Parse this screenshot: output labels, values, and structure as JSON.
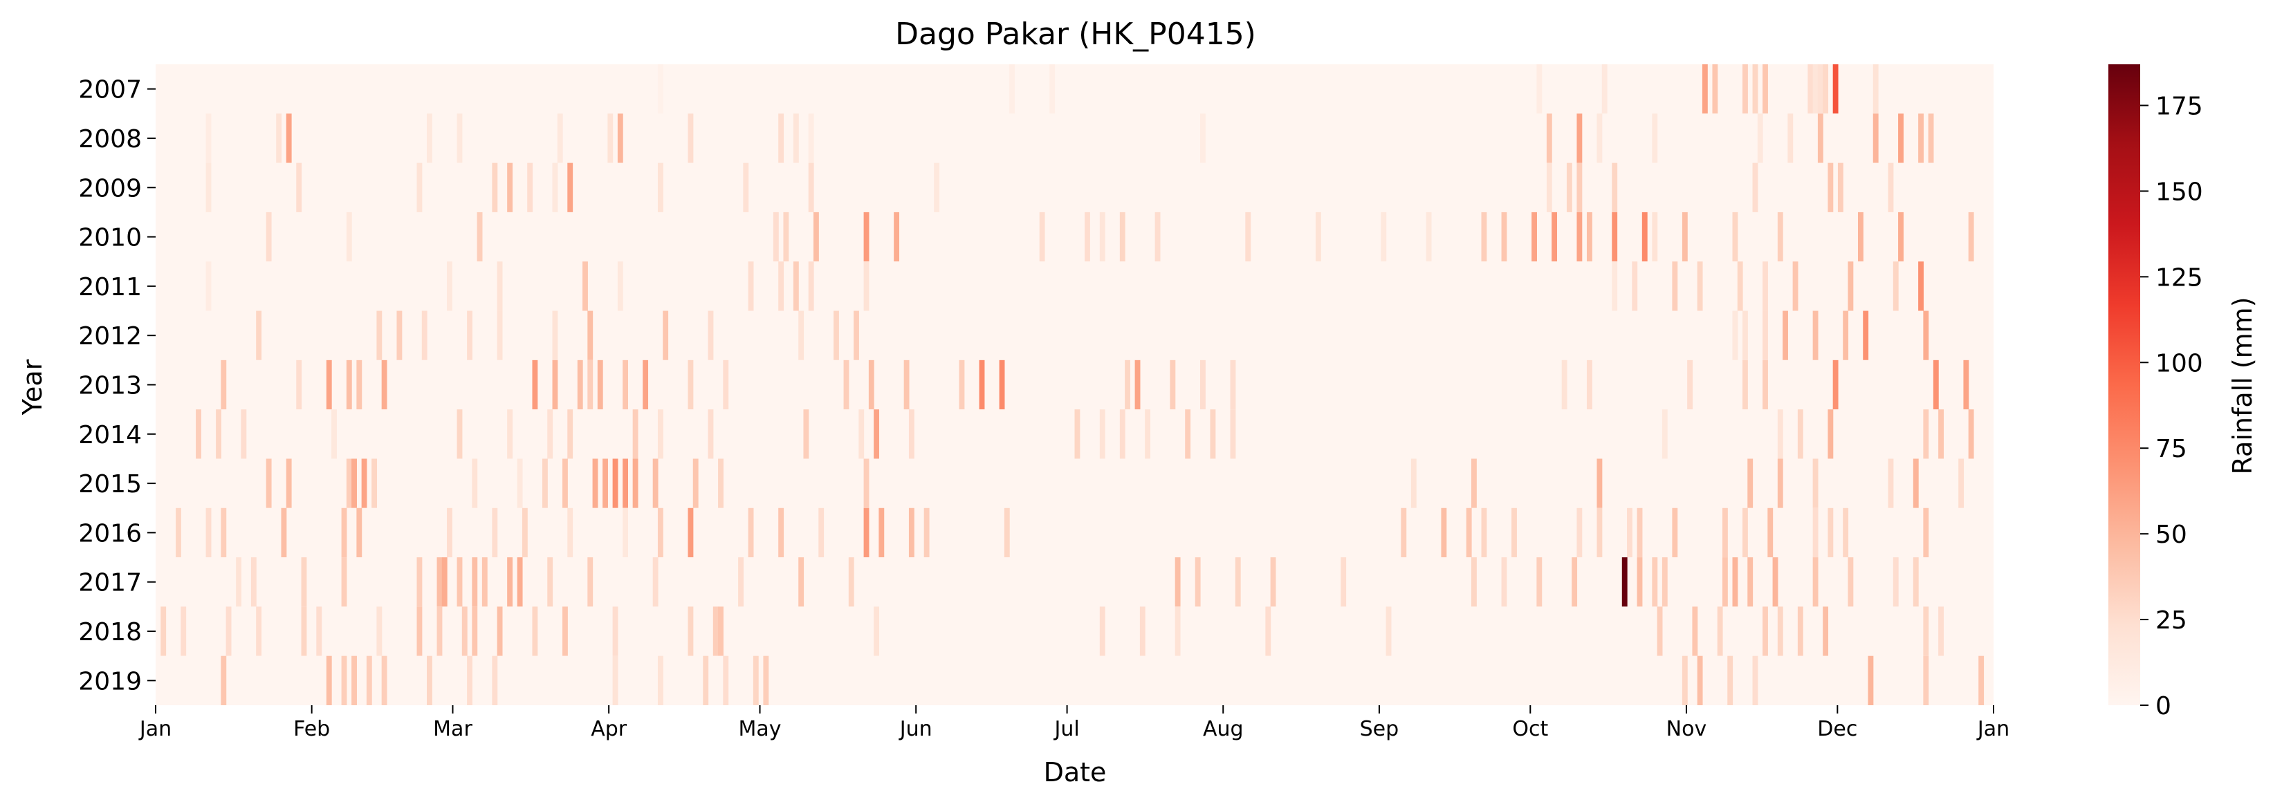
{
  "chart_data": {
    "type": "heatmap",
    "title": "Dago Pakar (HK_P0415)",
    "xlabel": "Date",
    "ylabel": "Year",
    "colorbar_label": "Rainfall (mm)",
    "colormap": "Reds",
    "colormap_stops": [
      "#fff5f0",
      "#fee0d2",
      "#fcbba1",
      "#fc9272",
      "#fb6a4a",
      "#ef3b2c",
      "#cb181d",
      "#a50f15",
      "#67000d"
    ],
    "value_range": [
      0,
      187
    ],
    "colorbar_ticks": [
      0,
      25,
      50,
      75,
      100,
      125,
      150,
      175
    ],
    "years": [
      "2007",
      "2008",
      "2009",
      "2010",
      "2011",
      "2012",
      "2013",
      "2014",
      "2015",
      "2016",
      "2017",
      "2018",
      "2019"
    ],
    "month_ticks": [
      {
        "label": "Jan",
        "day": 0
      },
      {
        "label": "Feb",
        "day": 31
      },
      {
        "label": "Mar",
        "day": 59
      },
      {
        "label": "Apr",
        "day": 90
      },
      {
        "label": "May",
        "day": 120
      },
      {
        "label": "Jun",
        "day": 151
      },
      {
        "label": "Jul",
        "day": 181
      },
      {
        "label": "Aug",
        "day": 212
      },
      {
        "label": "Sep",
        "day": 243
      },
      {
        "label": "Oct",
        "day": 273
      },
      {
        "label": "Nov",
        "day": 304
      },
      {
        "label": "Dec",
        "day": 334
      },
      {
        "label": "Jan",
        "day": 365
      }
    ],
    "days_per_year": 366,
    "rain_events": {
      "2007": [
        [
          100,
          5
        ],
        [
          170,
          8
        ],
        [
          178,
          8
        ],
        [
          275,
          10
        ],
        [
          288,
          14
        ],
        [
          308,
          60
        ],
        [
          310,
          40
        ],
        [
          316,
          35
        ],
        [
          318,
          30
        ],
        [
          320,
          40
        ],
        [
          329,
          25
        ],
        [
          330,
          18
        ],
        [
          331,
          22
        ],
        [
          332,
          28
        ],
        [
          334,
          105
        ],
        [
          342,
          20
        ]
      ],
      "2008": [
        [
          10,
          10
        ],
        [
          24,
          20
        ],
        [
          26,
          60
        ],
        [
          54,
          15
        ],
        [
          60,
          15
        ],
        [
          80,
          15
        ],
        [
          90,
          20
        ],
        [
          92,
          50
        ],
        [
          106,
          25
        ],
        [
          124,
          25
        ],
        [
          127,
          18
        ],
        [
          130,
          10
        ],
        [
          208,
          10
        ],
        [
          277,
          40
        ],
        [
          283,
          60
        ],
        [
          287,
          15
        ],
        [
          298,
          15
        ],
        [
          319,
          15
        ],
        [
          325,
          20
        ],
        [
          331,
          45
        ],
        [
          342,
          50
        ],
        [
          347,
          60
        ],
        [
          351,
          45
        ],
        [
          353,
          40
        ]
      ],
      "2009": [
        [
          10,
          15
        ],
        [
          28,
          25
        ],
        [
          52,
          20
        ],
        [
          67,
          30
        ],
        [
          70,
          45
        ],
        [
          79,
          15
        ],
        [
          74,
          25
        ],
        [
          82,
          60
        ],
        [
          100,
          20
        ],
        [
          117,
          22
        ],
        [
          130,
          25
        ],
        [
          155,
          15
        ],
        [
          277,
          20
        ],
        [
          281,
          30
        ],
        [
          283,
          35
        ],
        [
          290,
          30
        ],
        [
          318,
          25
        ],
        [
          333,
          40
        ],
        [
          335,
          35
        ],
        [
          345,
          25
        ]
      ],
      "2010": [
        [
          22,
          25
        ],
        [
          38,
          15
        ],
        [
          64,
          35
        ],
        [
          123,
          25
        ],
        [
          125,
          30
        ],
        [
          131,
          45
        ],
        [
          141,
          65
        ],
        [
          147,
          55
        ],
        [
          176,
          25
        ],
        [
          185,
          25
        ],
        [
          188,
          18
        ],
        [
          192,
          30
        ],
        [
          199,
          25
        ],
        [
          217,
          25
        ],
        [
          231,
          20
        ],
        [
          244,
          15
        ],
        [
          253,
          15
        ],
        [
          264,
          35
        ],
        [
          268,
          40
        ],
        [
          274,
          60
        ],
        [
          278,
          65
        ],
        [
          283,
          60
        ],
        [
          285,
          45
        ],
        [
          290,
          70
        ],
        [
          296,
          75
        ],
        [
          298,
          20
        ],
        [
          304,
          45
        ],
        [
          314,
          30
        ],
        [
          323,
          35
        ],
        [
          339,
          50
        ],
        [
          347,
          55
        ],
        [
          361,
          40
        ]
      ],
      "2011": [
        [
          10,
          10
        ],
        [
          58,
          15
        ],
        [
          68,
          20
        ],
        [
          85,
          40
        ],
        [
          92,
          15
        ],
        [
          118,
          25
        ],
        [
          124,
          25
        ],
        [
          127,
          35
        ],
        [
          130,
          25
        ],
        [
          141,
          20
        ],
        [
          290,
          15
        ],
        [
          294,
          25
        ],
        [
          302,
          35
        ],
        [
          307,
          30
        ],
        [
          315,
          30
        ],
        [
          320,
          25
        ],
        [
          326,
          40
        ],
        [
          337,
          45
        ],
        [
          346,
          30
        ],
        [
          351,
          70
        ]
      ],
      "2012": [
        [
          20,
          30
        ],
        [
          44,
          30
        ],
        [
          48,
          35
        ],
        [
          53,
          25
        ],
        [
          62,
          25
        ],
        [
          68,
          20
        ],
        [
          79,
          20
        ],
        [
          86,
          45
        ],
        [
          101,
          40
        ],
        [
          110,
          25
        ],
        [
          128,
          20
        ],
        [
          135,
          30
        ],
        [
          139,
          35
        ],
        [
          314,
          15
        ],
        [
          316,
          20
        ],
        [
          320,
          25
        ],
        [
          324,
          50
        ],
        [
          330,
          45
        ],
        [
          336,
          45
        ],
        [
          340,
          70
        ],
        [
          352,
          55
        ]
      ],
      "2013": [
        [
          13,
          40
        ],
        [
          28,
          25
        ],
        [
          34,
          60
        ],
        [
          38,
          45
        ],
        [
          40,
          40
        ],
        [
          45,
          55
        ],
        [
          75,
          65
        ],
        [
          79,
          50
        ],
        [
          84,
          45
        ],
        [
          86,
          35
        ],
        [
          88,
          50
        ],
        [
          93,
          40
        ],
        [
          97,
          60
        ],
        [
          106,
          30
        ],
        [
          113,
          25
        ],
        [
          137,
          35
        ],
        [
          142,
          45
        ],
        [
          149,
          40
        ],
        [
          160,
          35
        ],
        [
          164,
          75
        ],
        [
          168,
          75
        ],
        [
          193,
          30
        ],
        [
          195,
          60
        ],
        [
          202,
          35
        ],
        [
          208,
          25
        ],
        [
          214,
          25
        ],
        [
          280,
          20
        ],
        [
          285,
          25
        ],
        [
          305,
          25
        ],
        [
          316,
          30
        ],
        [
          320,
          35
        ],
        [
          334,
          70
        ],
        [
          354,
          70
        ],
        [
          360,
          60
        ]
      ],
      "2014": [
        [
          8,
          35
        ],
        [
          12,
          30
        ],
        [
          17,
          25
        ],
        [
          35,
          15
        ],
        [
          60,
          30
        ],
        [
          70,
          20
        ],
        [
          78,
          22
        ],
        [
          82,
          30
        ],
        [
          95,
          35
        ],
        [
          100,
          20
        ],
        [
          110,
          25
        ],
        [
          129,
          35
        ],
        [
          140,
          20
        ],
        [
          143,
          60
        ],
        [
          150,
          25
        ],
        [
          183,
          30
        ],
        [
          188,
          20
        ],
        [
          192,
          25
        ],
        [
          197,
          20
        ],
        [
          205,
          35
        ],
        [
          210,
          30
        ],
        [
          214,
          25
        ],
        [
          300,
          15
        ],
        [
          323,
          20
        ],
        [
          327,
          30
        ],
        [
          333,
          50
        ],
        [
          352,
          35
        ],
        [
          355,
          40
        ],
        [
          361,
          45
        ]
      ],
      "2015": [
        [
          22,
          40
        ],
        [
          26,
          45
        ],
        [
          38,
          35
        ],
        [
          39,
          55
        ],
        [
          41,
          60
        ],
        [
          43,
          30
        ],
        [
          63,
          20
        ],
        [
          72,
          15
        ],
        [
          77,
          30
        ],
        [
          81,
          40
        ],
        [
          87,
          55
        ],
        [
          89,
          55
        ],
        [
          91,
          70
        ],
        [
          93,
          65
        ],
        [
          95,
          55
        ],
        [
          99,
          45
        ],
        [
          107,
          40
        ],
        [
          112,
          30
        ],
        [
          141,
          35
        ],
        [
          250,
          20
        ],
        [
          262,
          40
        ],
        [
          287,
          50
        ],
        [
          317,
          45
        ],
        [
          323,
          45
        ],
        [
          330,
          30
        ],
        [
          345,
          25
        ],
        [
          350,
          50
        ],
        [
          359,
          25
        ]
      ],
      "2016": [
        [
          4,
          30
        ],
        [
          10,
          25
        ],
        [
          13,
          35
        ],
        [
          25,
          45
        ],
        [
          37,
          40
        ],
        [
          40,
          45
        ],
        [
          58,
          25
        ],
        [
          67,
          25
        ],
        [
          73,
          30
        ],
        [
          82,
          20
        ],
        [
          93,
          15
        ],
        [
          100,
          35
        ],
        [
          106,
          65
        ],
        [
          118,
          35
        ],
        [
          124,
          40
        ],
        [
          132,
          25
        ],
        [
          141,
          65
        ],
        [
          144,
          55
        ],
        [
          150,
          45
        ],
        [
          153,
          35
        ],
        [
          169,
          30
        ],
        [
          248,
          35
        ],
        [
          256,
          45
        ],
        [
          261,
          40
        ],
        [
          264,
          30
        ],
        [
          270,
          30
        ],
        [
          283,
          25
        ],
        [
          287,
          30
        ],
        [
          293,
          25
        ],
        [
          295,
          35
        ],
        [
          302,
          40
        ],
        [
          312,
          35
        ],
        [
          316,
          30
        ],
        [
          321,
          45
        ],
        [
          330,
          25
        ],
        [
          333,
          30
        ],
        [
          336,
          30
        ],
        [
          352,
          40
        ]
      ],
      "2017": [
        [
          16,
          20
        ],
        [
          19,
          25
        ],
        [
          29,
          30
        ],
        [
          37,
          35
        ],
        [
          52,
          35
        ],
        [
          56,
          45
        ],
        [
          57,
          55
        ],
        [
          60,
          40
        ],
        [
          63,
          45
        ],
        [
          65,
          40
        ],
        [
          70,
          50
        ],
        [
          72,
          55
        ],
        [
          78,
          30
        ],
        [
          86,
          35
        ],
        [
          99,
          25
        ],
        [
          116,
          25
        ],
        [
          128,
          40
        ],
        [
          138,
          30
        ],
        [
          203,
          45
        ],
        [
          207,
          35
        ],
        [
          215,
          30
        ],
        [
          222,
          35
        ],
        [
          236,
          25
        ],
        [
          262,
          30
        ],
        [
          268,
          25
        ],
        [
          275,
          35
        ],
        [
          282,
          40
        ],
        [
          292,
          187
        ],
        [
          295,
          45
        ],
        [
          298,
          35
        ],
        [
          300,
          35
        ],
        [
          312,
          40
        ],
        [
          314,
          50
        ],
        [
          317,
          45
        ],
        [
          322,
          50
        ],
        [
          330,
          40
        ],
        [
          337,
          35
        ],
        [
          346,
          25
        ],
        [
          350,
          30
        ]
      ],
      "2018": [
        [
          1,
          30
        ],
        [
          5,
          25
        ],
        [
          14,
          25
        ],
        [
          20,
          25
        ],
        [
          29,
          30
        ],
        [
          32,
          25
        ],
        [
          44,
          20
        ],
        [
          52,
          40
        ],
        [
          56,
          35
        ],
        [
          61,
          35
        ],
        [
          63,
          40
        ],
        [
          68,
          45
        ],
        [
          75,
          30
        ],
        [
          81,
          40
        ],
        [
          91,
          25
        ],
        [
          106,
          30
        ],
        [
          111,
          35
        ],
        [
          112,
          40
        ],
        [
          143,
          20
        ],
        [
          188,
          25
        ],
        [
          196,
          25
        ],
        [
          203,
          20
        ],
        [
          221,
          25
        ],
        [
          245,
          20
        ],
        [
          299,
          35
        ],
        [
          306,
          40
        ],
        [
          311,
          30
        ],
        [
          320,
          35
        ],
        [
          323,
          30
        ],
        [
          327,
          35
        ],
        [
          332,
          45
        ],
        [
          352,
          30
        ],
        [
          355,
          25
        ]
      ],
      "2019": [
        [
          13,
          40
        ],
        [
          34,
          45
        ],
        [
          37,
          35
        ],
        [
          39,
          40
        ],
        [
          42,
          35
        ],
        [
          45,
          35
        ],
        [
          54,
          30
        ],
        [
          62,
          25
        ],
        [
          67,
          25
        ],
        [
          91,
          20
        ],
        [
          100,
          20
        ],
        [
          109,
          30
        ],
        [
          113,
          25
        ],
        [
          119,
          30
        ],
        [
          121,
          35
        ],
        [
          304,
          30
        ],
        [
          307,
          45
        ],
        [
          313,
          30
        ],
        [
          318,
          25
        ],
        [
          341,
          50
        ],
        [
          352,
          35
        ],
        [
          363,
          40
        ]
      ]
    }
  }
}
